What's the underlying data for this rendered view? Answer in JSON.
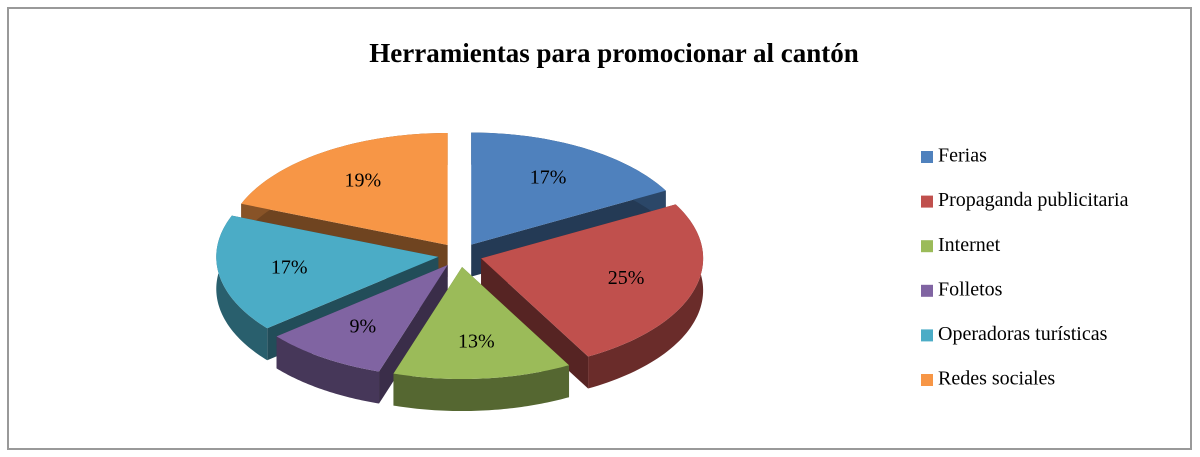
{
  "chart_data": {
    "type": "pie",
    "title": "Herramientas para promocionar al cantón",
    "categories": [
      "Ferias",
      "Propaganda publicitaria",
      "Internet",
      "Folletos",
      "Operadoras turísticas",
      "Redes sociales"
    ],
    "values": [
      17,
      25,
      13,
      9,
      17,
      19
    ],
    "value_labels": [
      "17%",
      "25%",
      "13%",
      "9%",
      "17%",
      "19%"
    ],
    "colors": [
      "#4f81bd",
      "#c0504d",
      "#9bbb59",
      "#8064a2",
      "#4bacc6",
      "#f79646"
    ],
    "legend": "right"
  }
}
